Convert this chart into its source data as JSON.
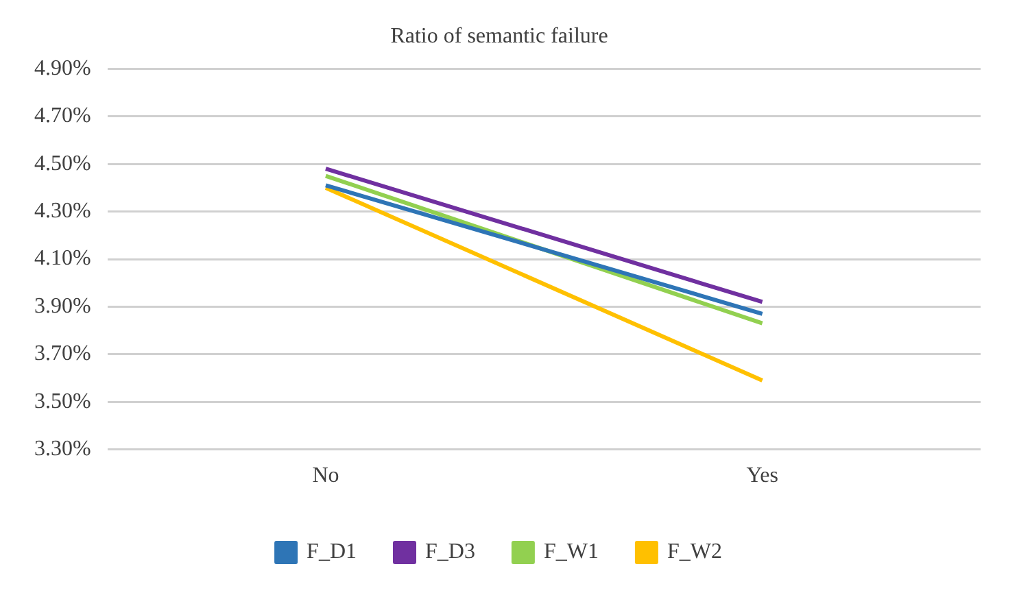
{
  "chart_data": {
    "type": "line",
    "title": "Ratio of semantic failure",
    "categories": [
      "No",
      "Yes"
    ],
    "series": [
      {
        "name": "F_D1",
        "color": "#2e75b6",
        "values": [
          4.41,
          3.87
        ]
      },
      {
        "name": "F_D3",
        "color": "#7030a0",
        "values": [
          4.48,
          3.92
        ]
      },
      {
        "name": "F_W1",
        "color": "#92d050",
        "values": [
          4.45,
          3.83
        ]
      },
      {
        "name": "F_W2",
        "color": "#ffc000",
        "values": [
          4.4,
          3.59
        ]
      }
    ],
    "ylim": [
      3.3,
      4.9
    ],
    "yticks": [
      {
        "value": 3.3,
        "label": "3.30%"
      },
      {
        "value": 3.5,
        "label": "3.50%"
      },
      {
        "value": 3.7,
        "label": "3.70%"
      },
      {
        "value": 3.9,
        "label": "3.90%"
      },
      {
        "value": 4.1,
        "label": "4.10%"
      },
      {
        "value": 4.3,
        "label": "4.30%"
      },
      {
        "value": 4.5,
        "label": "4.50%"
      },
      {
        "value": 4.7,
        "label": "4.70%"
      },
      {
        "value": 4.9,
        "label": "4.90%"
      }
    ],
    "grid": "y",
    "legend": "bottom",
    "marker": "none",
    "line_style": "solid"
  }
}
